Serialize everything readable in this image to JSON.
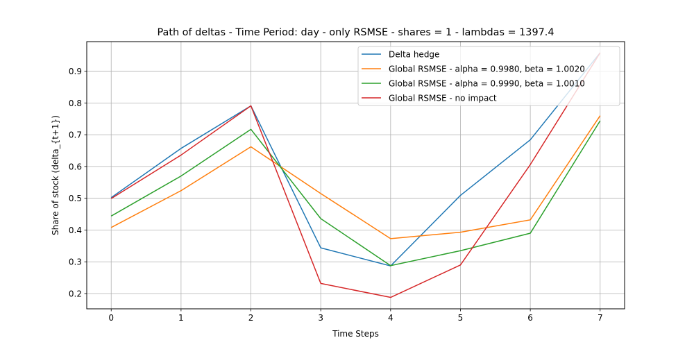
{
  "chart_data": {
    "type": "line",
    "title": "Path of deltas - Time Period: day - only RSMSE - shares = 1 - lambdas = 1397.4",
    "xlabel": "Time Steps",
    "ylabel": "Share of stock (delta_{t+1})",
    "x": [
      0,
      1,
      2,
      3,
      4,
      5,
      6,
      7
    ],
    "xlim": [
      -0.35,
      7.35
    ],
    "ylim": [
      0.152,
      0.993
    ],
    "xticks": [
      0,
      1,
      2,
      3,
      4,
      5,
      6,
      7
    ],
    "yticks": [
      0.2,
      0.3,
      0.4,
      0.5,
      0.6,
      0.7,
      0.8,
      0.9
    ],
    "grid": true,
    "legend_position": "top-right",
    "series": [
      {
        "name": "Delta hedge",
        "color": "#1f77b4",
        "values": [
          0.502,
          0.657,
          0.791,
          0.344,
          0.287,
          0.509,
          0.684,
          0.958
        ]
      },
      {
        "name": "Global RSMSE - alpha = 0.9980, beta = 1.0020",
        "color": "#ff7f0e",
        "values": [
          0.408,
          0.524,
          0.662,
          0.515,
          0.373,
          0.393,
          0.432,
          0.76
        ]
      },
      {
        "name": "Global RSMSE - alpha = 0.9990, beta = 1.0010",
        "color": "#2ca02c",
        "values": [
          0.444,
          0.57,
          0.717,
          0.436,
          0.288,
          0.335,
          0.39,
          0.744
        ]
      },
      {
        "name": "Global RSMSE - no impact",
        "color": "#d62728",
        "values": [
          0.499,
          0.636,
          0.791,
          0.232,
          0.188,
          0.29,
          0.606,
          0.958
        ]
      }
    ]
  }
}
